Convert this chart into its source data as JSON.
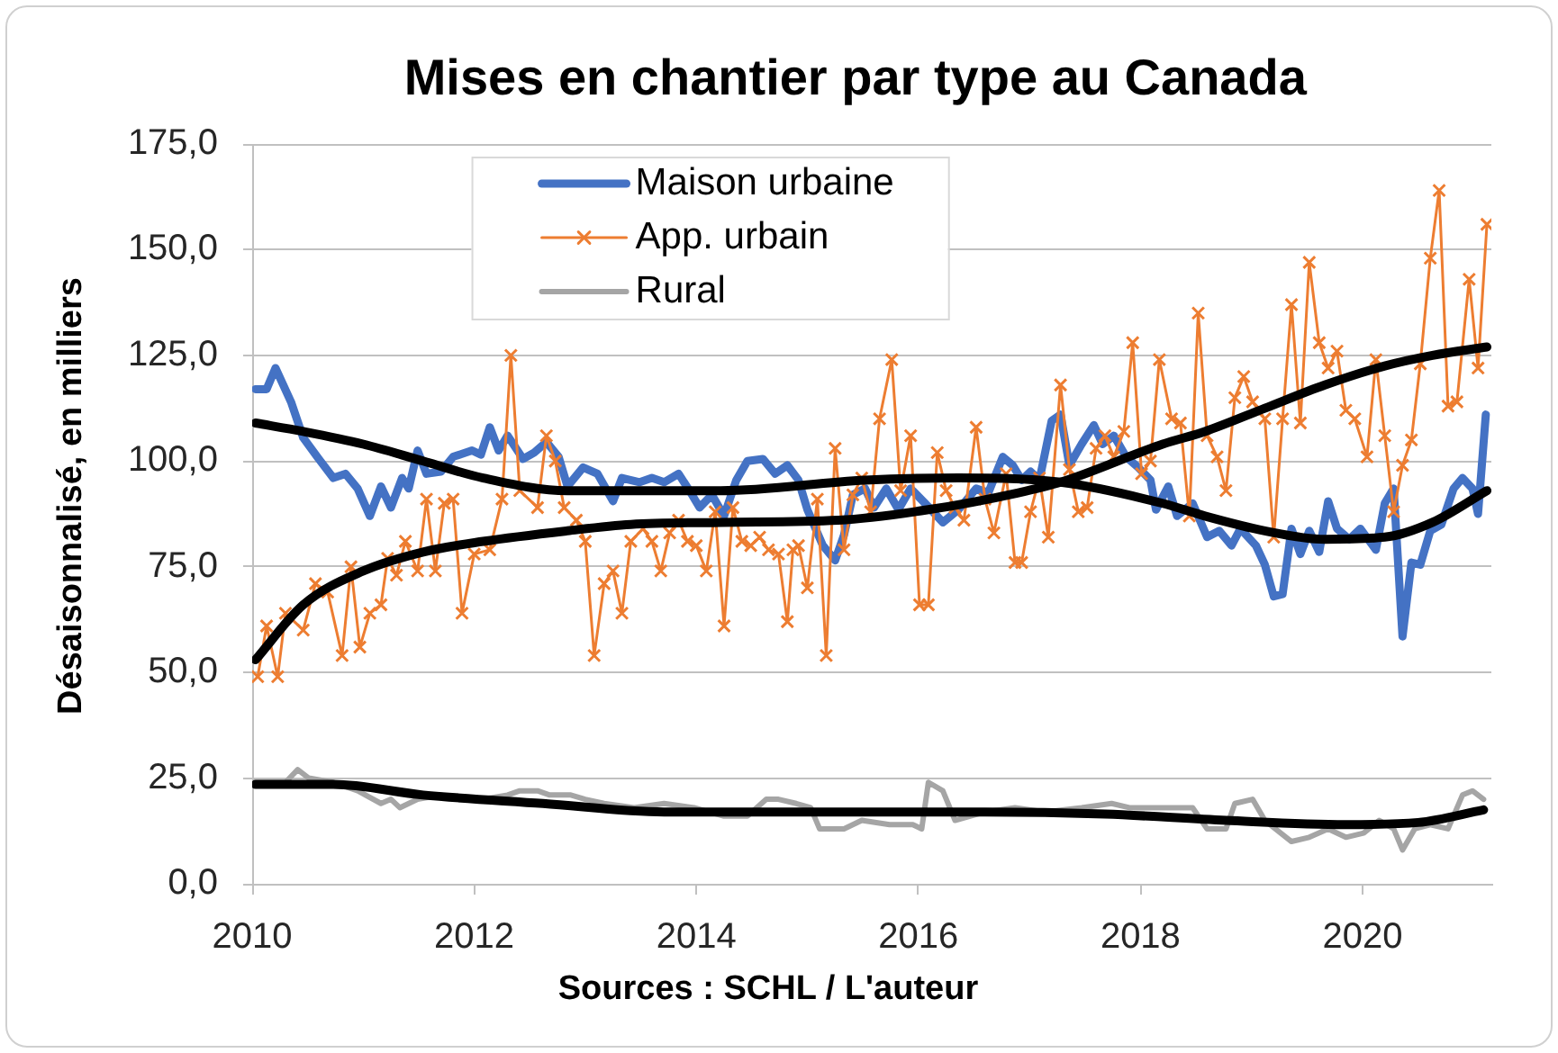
{
  "chart_data": {
    "type": "line",
    "title": "Mises en chantier par type au Canada",
    "ylabel": "Désaisonnalisé, en milliers",
    "annotations": [
      "Sources : SCHL / L'auteur"
    ],
    "xlim": [
      2010,
      2021.16
    ],
    "xticks": [
      2010,
      2012,
      2014,
      2016,
      2018,
      2020
    ],
    "ylim": [
      0,
      175
    ],
    "yticks": [
      {
        "value": 0,
        "label": "0,0"
      },
      {
        "value": 25,
        "label": "25,0"
      },
      {
        "value": 50,
        "label": "50,0"
      },
      {
        "value": 75,
        "label": "75,0"
      },
      {
        "value": 100,
        "label": "100,0"
      },
      {
        "value": 125,
        "label": "125,0"
      },
      {
        "value": 150,
        "label": "150,0"
      },
      {
        "value": 175,
        "label": "175,0"
      }
    ],
    "grid": "y",
    "legend": "top left",
    "series": [
      {
        "name": "Maison urbaine",
        "color": "#4472c4",
        "x": [
          2010.03,
          2010.13,
          2010.21,
          2010.35,
          2010.46,
          2010.6,
          2010.73,
          2010.84,
          2010.95,
          2011.06,
          2011.16,
          2011.25,
          2011.35,
          2011.41,
          2011.49,
          2011.57,
          2011.7,
          2011.81,
          2011.98,
          2012.06,
          2012.14,
          2012.22,
          2012.3,
          2012.44,
          2012.54,
          2012.65,
          2012.76,
          2012.84,
          2012.98,
          2013.11,
          2013.25,
          2013.33,
          2013.49,
          2013.6,
          2013.71,
          2013.84,
          2013.95,
          2014.03,
          2014.14,
          2014.25,
          2014.36,
          2014.46,
          2014.6,
          2014.71,
          2014.82,
          2014.92,
          2015.0,
          2015.14,
          2015.25,
          2015.33,
          2015.41,
          2015.52,
          2015.6,
          2015.71,
          2015.82,
          2015.93,
          2016.06,
          2016.22,
          2016.36,
          2016.52,
          2016.63,
          2016.76,
          2016.85,
          2016.93,
          2017.01,
          2017.09,
          2017.2,
          2017.28,
          2017.36,
          2017.47,
          2017.58,
          2017.66,
          2017.76,
          2017.87,
          2017.98,
          2018.09,
          2018.14,
          2018.25,
          2018.33,
          2018.47,
          2018.6,
          2018.71,
          2018.82,
          2018.9,
          2019.04,
          2019.12,
          2019.2,
          2019.28,
          2019.36,
          2019.44,
          2019.52,
          2019.61,
          2019.69,
          2019.77,
          2019.88,
          2019.98,
          2020.12,
          2020.2,
          2020.28,
          2020.36,
          2020.44,
          2020.52,
          2020.61,
          2020.71,
          2020.82,
          2020.9,
          2020.99,
          2021.04,
          2021.11
        ],
        "values": [
          117,
          117,
          122,
          114,
          105.5,
          100.5,
          96,
          97,
          93.5,
          87,
          94,
          89,
          96,
          93.5,
          102.5,
          97,
          97.5,
          101,
          102.5,
          101.5,
          108,
          102.5,
          106,
          100.5,
          102,
          104.5,
          101,
          94,
          98.5,
          97,
          90.5,
          96,
          95,
          96,
          95,
          97,
          92.5,
          89,
          92,
          87,
          95.5,
          100,
          100.5,
          97,
          99,
          95.5,
          88.5,
          80,
          76.5,
          82.5,
          92,
          93.5,
          89,
          93.5,
          88.5,
          93.5,
          90,
          85.5,
          88.5,
          93.5,
          92.5,
          101,
          99,
          95.5,
          97.5,
          95.5,
          109.5,
          111,
          99,
          104,
          108.5,
          104,
          106,
          101,
          98.5,
          95.5,
          88.5,
          94,
          87,
          90,
          82,
          83.5,
          80,
          84,
          80,
          75.5,
          68,
          68.5,
          84,
          78,
          83.5,
          78.5,
          90.5,
          84,
          81.5,
          84,
          79,
          90,
          93.5,
          58.5,
          76,
          75.5,
          83.5,
          85,
          93.5,
          96,
          93.5,
          87.5,
          111
        ]
      },
      {
        "name": "App. urbain",
        "color": "#ed7d31",
        "marker": "cross",
        "x": [
          2010.05,
          2010.13,
          2010.23,
          2010.3,
          2010.46,
          2010.57,
          2010.68,
          2010.81,
          2010.89,
          2010.97,
          2011.06,
          2011.16,
          2011.22,
          2011.3,
          2011.38,
          2011.49,
          2011.57,
          2011.65,
          2011.73,
          2011.81,
          2011.89,
          2012.0,
          2012.14,
          2012.25,
          2012.33,
          2012.41,
          2012.57,
          2012.65,
          2012.73,
          2012.81,
          2012.92,
          2013.0,
          2013.08,
          2013.17,
          2013.25,
          2013.33,
          2013.41,
          2013.52,
          2013.6,
          2013.68,
          2013.76,
          2013.84,
          2013.92,
          2014.0,
          2014.09,
          2014.17,
          2014.25,
          2014.33,
          2014.41,
          2014.49,
          2014.57,
          2014.65,
          2014.74,
          2014.82,
          2014.87,
          2014.92,
          2015.0,
          2015.09,
          2015.17,
          2015.25,
          2015.33,
          2015.41,
          2015.49,
          2015.57,
          2015.65,
          2015.76,
          2015.84,
          2015.93,
          2016.01,
          2016.09,
          2016.17,
          2016.25,
          2016.33,
          2016.41,
          2016.52,
          2016.6,
          2016.68,
          2016.79,
          2016.87,
          2016.93,
          2017.01,
          2017.09,
          2017.17,
          2017.28,
          2017.36,
          2017.44,
          2017.52,
          2017.6,
          2017.68,
          2017.76,
          2017.85,
          2017.93,
          2018.01,
          2018.09,
          2018.17,
          2018.28,
          2018.36,
          2018.44,
          2018.52,
          2018.6,
          2018.69,
          2018.77,
          2018.85,
          2018.93,
          2019.01,
          2019.12,
          2019.2,
          2019.28,
          2019.36,
          2019.44,
          2019.52,
          2019.61,
          2019.69,
          2019.77,
          2019.85,
          2019.93,
          2020.04,
          2020.12,
          2020.2,
          2020.28,
          2020.36,
          2020.44,
          2020.52,
          2020.61,
          2020.69,
          2020.77,
          2020.85,
          2020.96,
          2021.04,
          2021.12
        ],
        "values": [
          49,
          61,
          49,
          64,
          60,
          71,
          69,
          54,
          75,
          56,
          64,
          66,
          77,
          73,
          81,
          74,
          91,
          74,
          90,
          91,
          64,
          78,
          79,
          91,
          125,
          93,
          89,
          106,
          100,
          89,
          86,
          81,
          54,
          71,
          74,
          64,
          81,
          84,
          81,
          74,
          83,
          86,
          81,
          80,
          74,
          88,
          61,
          89,
          81,
          80,
          82,
          79,
          78,
          62,
          79,
          80,
          70,
          91,
          54,
          103,
          79,
          92,
          96,
          88,
          110,
          124,
          93,
          106,
          66,
          66,
          102,
          93,
          89,
          86,
          108,
          91,
          83,
          97,
          76,
          76,
          88,
          96,
          82,
          118,
          98,
          88,
          89,
          103,
          106,
          101,
          107,
          128,
          97,
          100,
          124,
          110,
          109,
          87,
          135,
          106,
          101,
          93,
          115,
          120,
          114,
          110,
          82,
          110,
          137,
          109,
          147,
          128,
          122,
          126,
          112,
          110,
          101,
          124,
          106,
          88,
          99,
          105,
          123,
          148,
          164,
          113,
          114,
          143,
          122,
          156
        ]
      },
      {
        "name": "Rural",
        "color": "#a5a5a5",
        "x": [
          2010.03,
          2010.3,
          2010.41,
          2010.51,
          2010.73,
          2010.95,
          2011.16,
          2011.25,
          2011.33,
          2011.49,
          2011.7,
          2011.87,
          2012.08,
          2012.3,
          2012.41,
          2012.57,
          2012.68,
          2012.87,
          2013.0,
          2013.17,
          2013.44,
          2013.71,
          2013.98,
          2014.25,
          2014.46,
          2014.63,
          2014.74,
          2014.9,
          2015.03,
          2015.11,
          2015.33,
          2015.49,
          2015.74,
          2015.95,
          2016.03,
          2016.09,
          2016.22,
          2016.33,
          2016.6,
          2016.87,
          2017.14,
          2017.47,
          2017.74,
          2017.9,
          2018.12,
          2018.47,
          2018.6,
          2018.77,
          2018.85,
          2019.01,
          2019.12,
          2019.36,
          2019.52,
          2019.69,
          2019.85,
          2020.01,
          2020.15,
          2020.28,
          2020.36,
          2020.47,
          2020.61,
          2020.77,
          2020.9,
          2020.99,
          2021.09
        ],
        "values": [
          24,
          24,
          27,
          25,
          24,
          22,
          19,
          20,
          18,
          20,
          21,
          20,
          20,
          21,
          22,
          22,
          21,
          21,
          20,
          19,
          18,
          19,
          18,
          16,
          16,
          20,
          20,
          19,
          18,
          13,
          13,
          15,
          14,
          14,
          13,
          24,
          22,
          15,
          17,
          18,
          17,
          18,
          19,
          18,
          18,
          18,
          13,
          13,
          19,
          20,
          15,
          10,
          11,
          13,
          11,
          12,
          15,
          13,
          8,
          13,
          14,
          13,
          21,
          22,
          20
        ]
      },
      {
        "color": "#000000",
        "x": [
          2010.03,
          2010.46,
          2011.0,
          2011.54,
          2012.08,
          2012.84,
          2013.41,
          2014.22,
          2015.52,
          2016.36,
          2017.28,
          2018.2,
          2018.58,
          2019.12,
          2019.66,
          2020.2,
          2020.63,
          2021.12
        ],
        "values": [
          109,
          107,
          104,
          100,
          96,
          93,
          93,
          93,
          95.5,
          96,
          95,
          90,
          87,
          83.5,
          81.5,
          82,
          85.5,
          93
        ]
      },
      {
        "color": "#000000",
        "x": [
          2010.03,
          2010.46,
          2011.0,
          2011.54,
          2012.08,
          2012.84,
          2013.41,
          2014.22,
          2015.28,
          2016.09,
          2016.9,
          2017.28,
          2018.2,
          2018.58,
          2019.12,
          2019.66,
          2020.2,
          2020.63,
          2021.12
        ],
        "values": [
          53,
          66,
          74,
          78.5,
          81,
          83.5,
          85,
          85.5,
          86,
          88.5,
          92.5,
          95,
          104,
          107,
          112.5,
          118,
          122.5,
          125,
          127
        ]
      },
      {
        "color": "#000000",
        "x": [
          2010.03,
          2010.73,
          2011.54,
          2012.62,
          2013.71,
          2014.79,
          2015.6,
          2016.6,
          2017.68,
          2018.77,
          2019.85,
          2020.5,
          2021.09
        ],
        "values": [
          23.5,
          23.5,
          21,
          19,
          17,
          17,
          17,
          17,
          16.5,
          15,
          14,
          14.5,
          17.5
        ]
      }
    ]
  }
}
